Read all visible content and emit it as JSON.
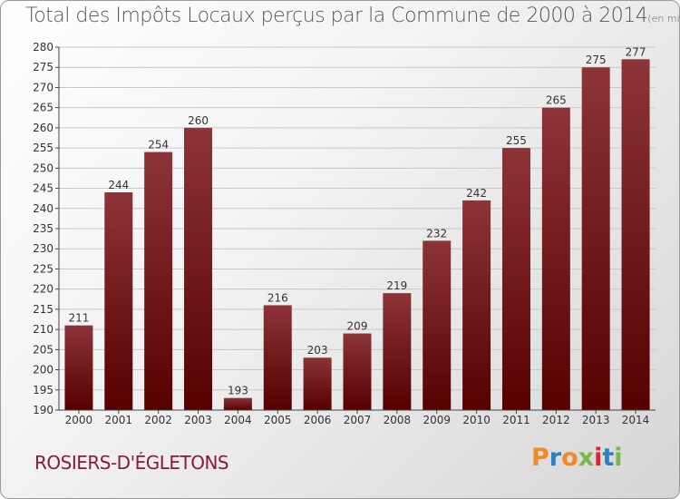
{
  "header": {
    "title": "Total des Impôts Locaux perçus par la Commune de 2000 à 2014",
    "unit": "(en milliers d'€)"
  },
  "footer": {
    "commune": "ROSIERS-D'ÉGLETONS",
    "logo": "Proxiti"
  },
  "colors": {
    "bar_top": "#8c3438",
    "bar_bottom": "#560000",
    "logo_letters": [
      "#f08a24",
      "#2e7fc1",
      "#f08a24",
      "#7ab648",
      "#d9232e",
      "#2e7fc1",
      "#7ab648"
    ]
  },
  "chart_data": {
    "type": "bar",
    "categories": [
      "2000",
      "2001",
      "2002",
      "2003",
      "2004",
      "2005",
      "2006",
      "2007",
      "2008",
      "2009",
      "2010",
      "2011",
      "2012",
      "2013",
      "2014"
    ],
    "values": [
      211,
      244,
      254,
      260,
      193,
      216,
      203,
      209,
      219,
      232,
      242,
      255,
      265,
      275,
      277
    ],
    "ylim": [
      190,
      280
    ],
    "yticks": [
      190,
      195,
      200,
      205,
      210,
      215,
      220,
      225,
      230,
      235,
      240,
      245,
      250,
      255,
      260,
      265,
      270,
      275,
      280
    ],
    "grid": true,
    "value_labels": true
  }
}
